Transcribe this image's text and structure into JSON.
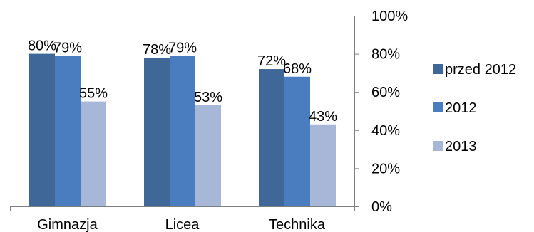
{
  "chart_data": {
    "type": "bar",
    "categories": [
      "Gimnazja",
      "Licea",
      "Technika"
    ],
    "series": [
      {
        "name": "przed 2012",
        "values": [
          80,
          78,
          72
        ],
        "color": "#3f6797"
      },
      {
        "name": "2012",
        "values": [
          79,
          79,
          68
        ],
        "color": "#4a7dbf"
      },
      {
        "name": "2013",
        "values": [
          55,
          53,
          43
        ],
        "color": "#a7b7d8"
      }
    ],
    "value_suffix": "%",
    "ylim": [
      0,
      100
    ],
    "y_ticks": [
      "0%",
      "20%",
      "40%",
      "60%",
      "80%",
      "100%"
    ],
    "y_axis_side": "right",
    "grid": false,
    "legend_position": "right",
    "data_labels": true
  }
}
